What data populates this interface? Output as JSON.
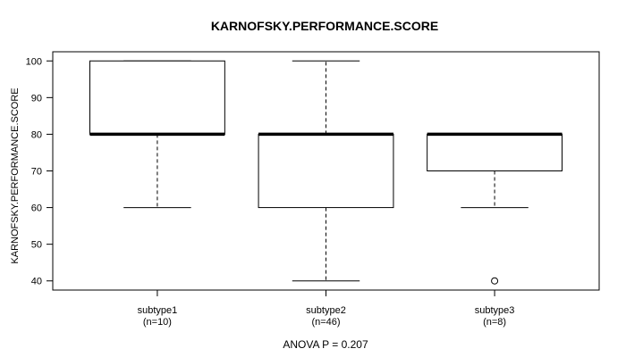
{
  "chart_data": {
    "type": "boxplot",
    "title": "KARNOFSKY.PERFORMANCE.SCORE",
    "ylabel": "KARNOFSKY.PERFORMANCE.SCORE",
    "annotation": "ANOVA P = 0.207",
    "ylim": [
      37.5,
      102.5
    ],
    "yticks": [
      40,
      50,
      60,
      70,
      80,
      90,
      100
    ],
    "grid": false,
    "legend": "none",
    "categories": [
      "subtype1",
      "subtype2",
      "subtype3"
    ],
    "series": [
      {
        "name": "subtype1",
        "sublabel": "(n=10)",
        "n": 10,
        "whisker_low": 60,
        "q1": 80,
        "median": 80,
        "q3": 100,
        "whisker_high": 100,
        "outliers": []
      },
      {
        "name": "subtype2",
        "sublabel": "(n=46)",
        "n": 46,
        "whisker_low": 40,
        "q1": 60,
        "median": 80,
        "q3": 80,
        "whisker_high": 100,
        "outliers": []
      },
      {
        "name": "subtype3",
        "sublabel": "(n=8)",
        "n": 8,
        "whisker_low": 60,
        "q1": 70,
        "median": 80,
        "q3": 80,
        "whisker_high": 80,
        "outliers": [
          40
        ]
      }
    ],
    "colors": {
      "line": "#000000",
      "background": "#ffffff",
      "box_fill": "#ffffff"
    }
  }
}
